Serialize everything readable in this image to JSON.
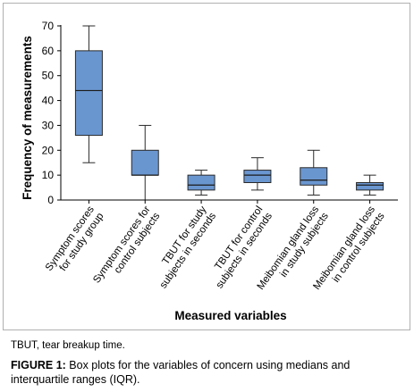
{
  "chart_data": {
    "type": "box",
    "ylabel": "Frequency of measurements",
    "xlabel": "Measured variables",
    "ylim": [
      0,
      70
    ],
    "yticks": [
      0,
      10,
      20,
      30,
      40,
      50,
      60,
      70
    ],
    "box_color": "#6a96d0",
    "box_stroke": "#2a2a2a",
    "categories": [
      {
        "label_lines": [
          "Symptom scores",
          "for study group"
        ],
        "min": 15,
        "q1": 26,
        "median": 44,
        "q3": 60,
        "max": 70
      },
      {
        "label_lines": [
          "Symptom scores for",
          "control subjects"
        ],
        "min": 0,
        "q1": 10,
        "median": 10,
        "q3": 20,
        "max": 30
      },
      {
        "label_lines": [
          "TBUT for study",
          "subjects in seconds"
        ],
        "min": 2,
        "q1": 4,
        "median": 6,
        "q3": 10,
        "max": 12
      },
      {
        "label_lines": [
          "TBUT for control",
          "subjects in seconds"
        ],
        "min": 4,
        "q1": 7,
        "median": 10,
        "q3": 12,
        "max": 17
      },
      {
        "label_lines": [
          "Meibomian gland loss",
          "in study subjects"
        ],
        "min": 2,
        "q1": 6,
        "median": 8,
        "q3": 13,
        "max": 20
      },
      {
        "label_lines": [
          "Meibomian gland loss",
          "in control subjects"
        ],
        "min": 2,
        "q1": 4,
        "median": 6,
        "q3": 7,
        "max": 10
      }
    ]
  },
  "footnote": "TBUT, tear breakup time.",
  "caption": {
    "label": "FIGURE 1:",
    "text": " Box plots for the variables of concern using medians and interquartile ranges (IQR)."
  }
}
